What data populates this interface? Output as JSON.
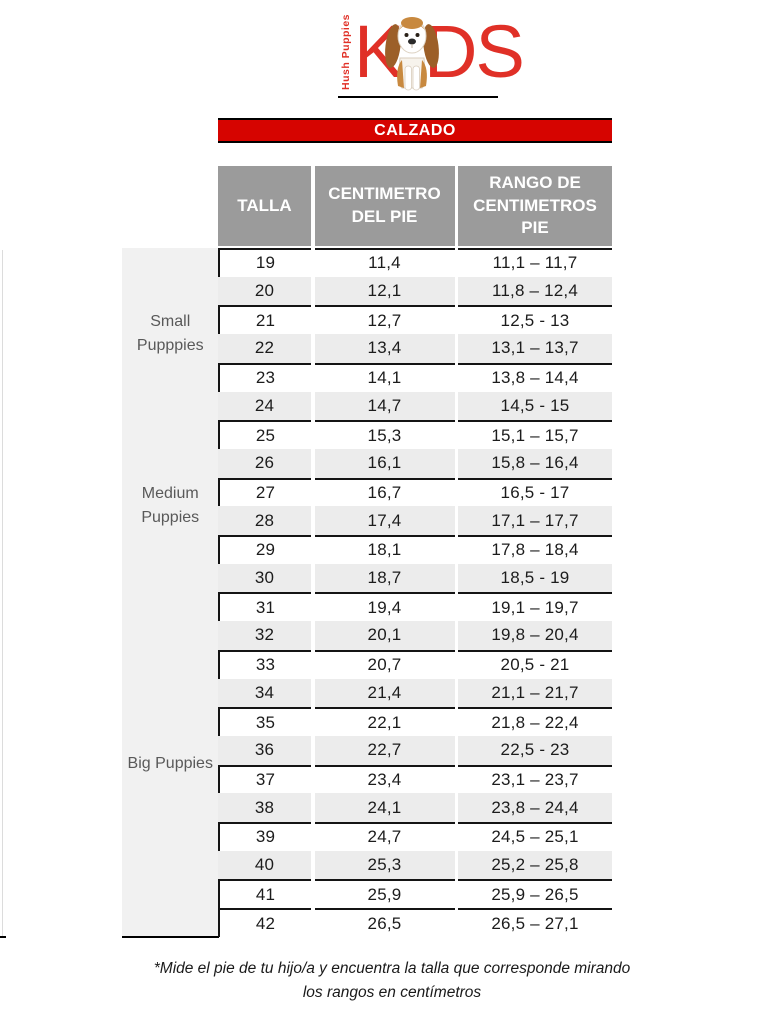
{
  "logo": {
    "brand_vertical": "Hush Puppies",
    "kids_k": "K",
    "kids_ds": "DS",
    "dog_icon": "basset-hound",
    "red": "#e03027"
  },
  "banner": {
    "label": "CALZADO",
    "background": "#d60400"
  },
  "table": {
    "headers": [
      "TALLA",
      "CENTIMETRO DEL PIE",
      "RANGO DE CENTIMETROS PIE"
    ],
    "header_background": "#9b9b9b",
    "stripe_color": "#ececec",
    "groups": [
      {
        "label": "Small Pupppies",
        "rows": 6
      },
      {
        "label": "Medium Puppies",
        "rows": 6
      },
      {
        "label": "Big Puppies",
        "rows": 12
      }
    ],
    "rows": [
      {
        "talla": "19",
        "cm": "11,4",
        "rango": "11,1 – 11,7"
      },
      {
        "talla": "20",
        "cm": "12,1",
        "rango": "11,8 – 12,4"
      },
      {
        "talla": "21",
        "cm": "12,7",
        "rango": "12,5 - 13"
      },
      {
        "talla": "22",
        "cm": "13,4",
        "rango": "13,1 – 13,7"
      },
      {
        "talla": "23",
        "cm": "14,1",
        "rango": "13,8 – 14,4"
      },
      {
        "talla": "24",
        "cm": "14,7",
        "rango": "14,5 - 15"
      },
      {
        "talla": "25",
        "cm": "15,3",
        "rango": "15,1 – 15,7"
      },
      {
        "talla": "26",
        "cm": "16,1",
        "rango": "15,8 – 16,4"
      },
      {
        "talla": "27",
        "cm": "16,7",
        "rango": "16,5 - 17"
      },
      {
        "talla": "28",
        "cm": "17,4",
        "rango": "17,1 – 17,7"
      },
      {
        "talla": "29",
        "cm": "18,1",
        "rango": "17,8 – 18,4"
      },
      {
        "talla": "30",
        "cm": "18,7",
        "rango": "18,5 - 19"
      },
      {
        "talla": "31",
        "cm": "19,4",
        "rango": "19,1 – 19,7"
      },
      {
        "talla": "32",
        "cm": "20,1",
        "rango": "19,8 – 20,4"
      },
      {
        "talla": "33",
        "cm": "20,7",
        "rango": "20,5 - 21"
      },
      {
        "talla": "34",
        "cm": "21,4",
        "rango": "21,1 – 21,7"
      },
      {
        "talla": "35",
        "cm": "22,1",
        "rango": "21,8 – 22,4"
      },
      {
        "talla": "36",
        "cm": "22,7",
        "rango": "22,5 - 23"
      },
      {
        "talla": "37",
        "cm": "23,4",
        "rango": "23,1 – 23,7"
      },
      {
        "talla": "38",
        "cm": "24,1",
        "rango": "23,8 – 24,4"
      },
      {
        "talla": "39",
        "cm": "24,7",
        "rango": "24,5 – 25,1"
      },
      {
        "talla": "40",
        "cm": "25,3",
        "rango": "25,2 – 25,8"
      },
      {
        "talla": "41",
        "cm": "25,9",
        "rango": "25,9 – 26,5"
      },
      {
        "talla": "42",
        "cm": "26,5",
        "rango": "26,5 – 27,1"
      }
    ]
  },
  "footnote": {
    "line1": "*Mide el pie de tu hijo/a y encuentra la talla que corresponde mirando",
    "line2": "los rangos en centímetros"
  }
}
